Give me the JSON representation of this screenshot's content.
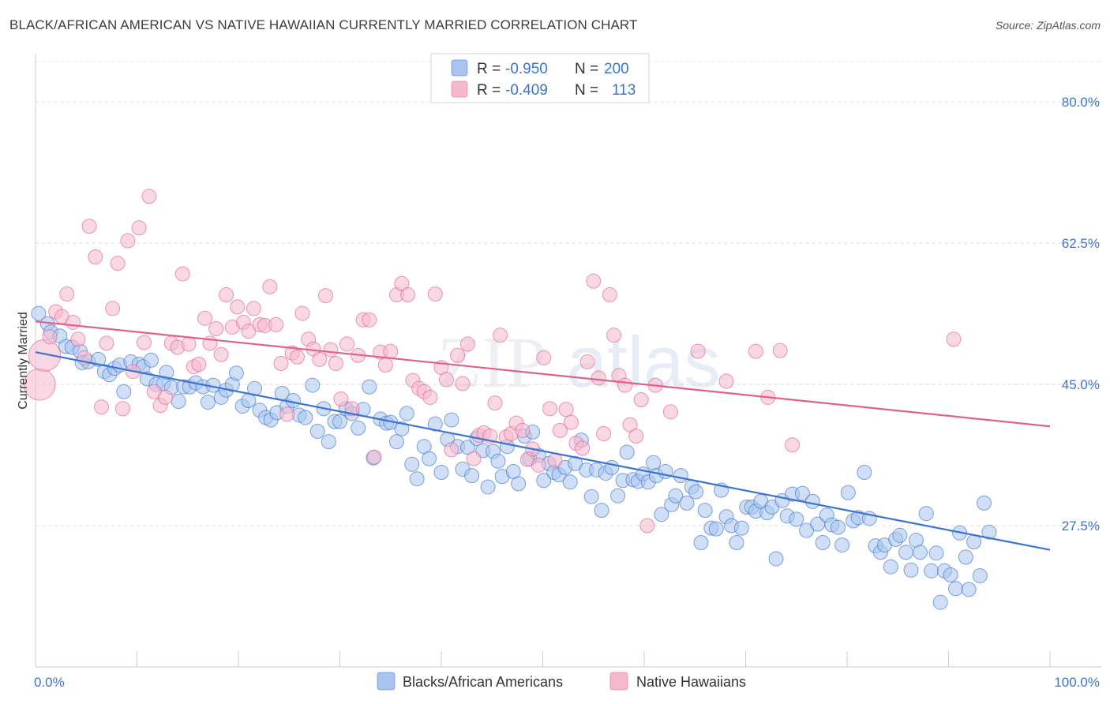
{
  "title": "BLACK/AFRICAN AMERICAN VS NATIVE HAWAIIAN CURRENTLY MARRIED CORRELATION CHART",
  "source": "Source: ZipAtlas.com",
  "watermark": {
    "zip": "ZIP",
    "atlas": "atlas"
  },
  "colors": {
    "blue": "#3b74d0",
    "blue_fill": "#a9c4ef",
    "pink": "#e0608e",
    "pink_fill": "#f6b8cc",
    "grid": "#d8d8d8"
  },
  "legend": {
    "r_label": "R =",
    "n_label": "N =",
    "rows": [
      {
        "r": "-0.950",
        "n": "200"
      },
      {
        "r": "-0.409",
        "n": "113"
      }
    ]
  },
  "chart_data": {
    "type": "scatter",
    "ylabel": "Currently Married",
    "xlim": [
      0,
      100
    ],
    "ylim": [
      10,
      85
    ],
    "x_tick_labels": [
      "0.0%",
      "100.0%"
    ],
    "y_ticks": [
      {
        "value": 80,
        "label": "80.0%"
      },
      {
        "value": 62.5,
        "label": "62.5%"
      },
      {
        "value": 45,
        "label": "45.0%"
      },
      {
        "value": 27.5,
        "label": "27.5%"
      }
    ],
    "grid": true,
    "legend_position": "top-center",
    "series": [
      {
        "name": "Blacks/African Americans",
        "color": "#3b74d0",
        "fill": "#a9c4ef",
        "trend": {
          "x": [
            0,
            100
          ],
          "y": [
            49.0,
            24.5
          ]
        },
        "points": [
          [
            0.3,
            53.8
          ],
          [
            1.2,
            52.5
          ],
          [
            1.5,
            51.5
          ],
          [
            2.4,
            51.0
          ],
          [
            3.0,
            49.7
          ],
          [
            3.6,
            49.6
          ],
          [
            4.4,
            49.1
          ],
          [
            4.6,
            47.7
          ],
          [
            5.2,
            47.8
          ],
          [
            6.2,
            48.1
          ],
          [
            6.8,
            46.6
          ],
          [
            7.3,
            46.2
          ],
          [
            7.8,
            47.0
          ],
          [
            8.3,
            47.4
          ],
          [
            8.7,
            44.1
          ],
          [
            9.4,
            47.8
          ],
          [
            10.2,
            47.5
          ],
          [
            10.6,
            47.2
          ],
          [
            11.0,
            45.7
          ],
          [
            11.4,
            48.0
          ],
          [
            11.9,
            45.0
          ],
          [
            12.6,
            45.1
          ],
          [
            12.9,
            46.5
          ],
          [
            13.4,
            44.6
          ],
          [
            14.1,
            42.9
          ],
          [
            14.6,
            44.7
          ],
          [
            15.2,
            44.7
          ],
          [
            15.8,
            45.2
          ],
          [
            16.5,
            44.7
          ],
          [
            17.0,
            42.8
          ],
          [
            17.5,
            44.9
          ],
          [
            18.3,
            43.4
          ],
          [
            18.8,
            44.3
          ],
          [
            19.4,
            45.0
          ],
          [
            19.8,
            46.4
          ],
          [
            20.4,
            42.3
          ],
          [
            21.0,
            43.0
          ],
          [
            21.6,
            44.5
          ],
          [
            22.1,
            41.8
          ],
          [
            22.7,
            40.9
          ],
          [
            23.2,
            40.6
          ],
          [
            23.8,
            41.5
          ],
          [
            24.3,
            43.9
          ],
          [
            24.8,
            42.3
          ],
          [
            25.4,
            43.0
          ],
          [
            26.0,
            41.2
          ],
          [
            26.6,
            40.9
          ],
          [
            27.3,
            44.9
          ],
          [
            27.8,
            39.2
          ],
          [
            28.4,
            42.0
          ],
          [
            28.9,
            37.9
          ],
          [
            29.5,
            40.4
          ],
          [
            30.0,
            40.4
          ],
          [
            30.6,
            42.0
          ],
          [
            31.2,
            41.4
          ],
          [
            31.8,
            39.6
          ],
          [
            32.3,
            41.9
          ],
          [
            32.9,
            44.7
          ],
          [
            33.3,
            35.9
          ],
          [
            34.0,
            40.7
          ],
          [
            34.6,
            40.2
          ],
          [
            35.0,
            40.3
          ],
          [
            35.6,
            37.9
          ],
          [
            36.1,
            39.5
          ],
          [
            36.6,
            41.4
          ],
          [
            37.1,
            35.1
          ],
          [
            37.6,
            33.3
          ],
          [
            38.3,
            37.3
          ],
          [
            38.8,
            35.8
          ],
          [
            39.4,
            40.1
          ],
          [
            40.0,
            34.1
          ],
          [
            40.6,
            38.2
          ],
          [
            41.0,
            40.6
          ],
          [
            41.6,
            37.3
          ],
          [
            42.1,
            34.5
          ],
          [
            42.6,
            37.2
          ],
          [
            43.0,
            33.7
          ],
          [
            43.5,
            38.3
          ],
          [
            44.1,
            36.8
          ],
          [
            44.6,
            32.3
          ],
          [
            45.1,
            36.7
          ],
          [
            45.6,
            35.5
          ],
          [
            46.0,
            33.6
          ],
          [
            46.5,
            37.3
          ],
          [
            47.1,
            34.2
          ],
          [
            47.6,
            32.7
          ],
          [
            48.2,
            38.6
          ],
          [
            48.7,
            35.8
          ],
          [
            49.0,
            39.1
          ],
          [
            49.6,
            36.2
          ],
          [
            50.1,
            33.1
          ],
          [
            50.6,
            35.2
          ],
          [
            51.1,
            34.1
          ],
          [
            51.6,
            33.8
          ],
          [
            52.2,
            34.7
          ],
          [
            52.7,
            32.9
          ],
          [
            53.2,
            35.2
          ],
          [
            53.8,
            38.1
          ],
          [
            54.3,
            34.4
          ],
          [
            54.8,
            31.1
          ],
          [
            55.3,
            34.4
          ],
          [
            55.8,
            29.4
          ],
          [
            56.2,
            34.0
          ],
          [
            56.8,
            34.7
          ],
          [
            57.4,
            31.2
          ],
          [
            57.9,
            33.1
          ],
          [
            58.3,
            36.6
          ],
          [
            58.9,
            33.2
          ],
          [
            59.4,
            33.0
          ],
          [
            59.9,
            33.9
          ],
          [
            60.4,
            32.9
          ],
          [
            60.9,
            35.3
          ],
          [
            61.2,
            33.7
          ],
          [
            61.7,
            28.9
          ],
          [
            62.1,
            34.2
          ],
          [
            62.7,
            30.1
          ],
          [
            63.1,
            31.2
          ],
          [
            63.6,
            33.7
          ],
          [
            64.2,
            30.3
          ],
          [
            64.7,
            32.3
          ],
          [
            65.1,
            31.7
          ],
          [
            65.6,
            25.4
          ],
          [
            66.0,
            29.4
          ],
          [
            66.6,
            27.2
          ],
          [
            67.1,
            27.1
          ],
          [
            67.6,
            31.9
          ],
          [
            68.1,
            28.6
          ],
          [
            68.6,
            27.5
          ],
          [
            69.1,
            25.4
          ],
          [
            69.6,
            27.2
          ],
          [
            70.1,
            29.8
          ],
          [
            70.6,
            29.8
          ],
          [
            71.0,
            29.3
          ],
          [
            71.5,
            30.5
          ],
          [
            72.1,
            29.1
          ],
          [
            72.6,
            29.8
          ],
          [
            73.0,
            23.4
          ],
          [
            73.6,
            30.6
          ],
          [
            74.1,
            28.7
          ],
          [
            74.6,
            31.4
          ],
          [
            75.0,
            28.3
          ],
          [
            75.6,
            31.5
          ],
          [
            76.0,
            26.9
          ],
          [
            76.6,
            30.5
          ],
          [
            77.1,
            27.7
          ],
          [
            77.6,
            25.4
          ],
          [
            78.0,
            28.8
          ],
          [
            78.5,
            27.6
          ],
          [
            79.1,
            27.3
          ],
          [
            79.5,
            25.1
          ],
          [
            80.1,
            31.6
          ],
          [
            80.6,
            28.1
          ],
          [
            81.1,
            28.5
          ],
          [
            81.7,
            34.1
          ],
          [
            82.2,
            28.4
          ],
          [
            82.8,
            25.0
          ],
          [
            83.3,
            24.2
          ],
          [
            83.7,
            25.1
          ],
          [
            84.3,
            22.4
          ],
          [
            84.8,
            25.8
          ],
          [
            85.2,
            26.3
          ],
          [
            85.8,
            24.2
          ],
          [
            86.3,
            22.0
          ],
          [
            86.8,
            25.7
          ],
          [
            87.2,
            24.2
          ],
          [
            87.8,
            29.0
          ],
          [
            88.3,
            21.9
          ],
          [
            88.8,
            24.1
          ],
          [
            89.2,
            18.0
          ],
          [
            89.6,
            21.9
          ],
          [
            90.2,
            21.4
          ],
          [
            90.7,
            19.7
          ],
          [
            91.1,
            26.6
          ],
          [
            91.7,
            23.6
          ],
          [
            92.0,
            19.6
          ],
          [
            92.5,
            25.5
          ],
          [
            93.1,
            21.3
          ],
          [
            93.5,
            30.3
          ],
          [
            94.0,
            26.7
          ]
        ]
      },
      {
        "name": "Native Hawaiians",
        "color": "#e0608e",
        "fill": "#f6b8cc",
        "trend": {
          "x": [
            0,
            100
          ],
          "y": [
            52.8,
            39.8
          ]
        },
        "points": [
          [
            0.4,
            45.0
          ],
          [
            0.9,
            48.6
          ],
          [
            1.4,
            50.9
          ],
          [
            2.0,
            54.0
          ],
          [
            2.6,
            53.4
          ],
          [
            3.1,
            56.2
          ],
          [
            3.7,
            52.7
          ],
          [
            4.2,
            50.6
          ],
          [
            4.8,
            48.3
          ],
          [
            5.3,
            64.6
          ],
          [
            5.9,
            60.8
          ],
          [
            6.5,
            42.2
          ],
          [
            7.0,
            50.1
          ],
          [
            7.6,
            54.4
          ],
          [
            8.1,
            60.0
          ],
          [
            8.6,
            42.0
          ],
          [
            9.1,
            62.8
          ],
          [
            9.6,
            46.6
          ],
          [
            10.2,
            64.4
          ],
          [
            10.7,
            50.2
          ],
          [
            11.2,
            68.3
          ],
          [
            11.7,
            44.1
          ],
          [
            12.3,
            42.4
          ],
          [
            12.8,
            43.4
          ],
          [
            13.4,
            50.1
          ],
          [
            14.0,
            49.6
          ],
          [
            14.5,
            58.7
          ],
          [
            15.1,
            50.0
          ],
          [
            15.6,
            47.2
          ],
          [
            16.1,
            47.5
          ],
          [
            16.7,
            53.2
          ],
          [
            17.2,
            50.1
          ],
          [
            17.8,
            51.9
          ],
          [
            18.3,
            48.7
          ],
          [
            18.8,
            56.1
          ],
          [
            19.4,
            52.1
          ],
          [
            19.9,
            54.6
          ],
          [
            20.5,
            52.7
          ],
          [
            21.0,
            51.6
          ],
          [
            21.5,
            54.4
          ],
          [
            22.1,
            52.4
          ],
          [
            22.6,
            52.3
          ],
          [
            23.1,
            57.1
          ],
          [
            23.7,
            52.4
          ],
          [
            24.2,
            47.6
          ],
          [
            24.8,
            41.3
          ],
          [
            25.3,
            48.9
          ],
          [
            25.8,
            48.4
          ],
          [
            26.3,
            53.8
          ],
          [
            26.9,
            50.6
          ],
          [
            27.4,
            49.4
          ],
          [
            28.0,
            48.1
          ],
          [
            28.6,
            56.0
          ],
          [
            29.1,
            49.3
          ],
          [
            29.6,
            47.6
          ],
          [
            30.1,
            43.2
          ],
          [
            30.7,
            50.0
          ],
          [
            31.2,
            42.0
          ],
          [
            31.8,
            48.6
          ],
          [
            32.3,
            53.0
          ],
          [
            32.9,
            53.0
          ],
          [
            33.4,
            36.0
          ],
          [
            34.0,
            49.0
          ],
          [
            34.5,
            47.4
          ],
          [
            35.0,
            49.1
          ],
          [
            35.6,
            56.1
          ],
          [
            36.1,
            57.5
          ],
          [
            36.7,
            56.1
          ],
          [
            37.2,
            45.5
          ],
          [
            37.8,
            44.5
          ],
          [
            38.3,
            44.1
          ],
          [
            38.9,
            43.4
          ],
          [
            39.4,
            56.2
          ],
          [
            40.0,
            47.1
          ],
          [
            40.5,
            45.6
          ],
          [
            41.0,
            36.9
          ],
          [
            41.6,
            48.6
          ],
          [
            42.1,
            45.1
          ],
          [
            42.6,
            50.0
          ],
          [
            43.2,
            35.8
          ],
          [
            43.7,
            38.7
          ],
          [
            44.2,
            39.0
          ],
          [
            44.8,
            38.6
          ],
          [
            45.3,
            42.7
          ],
          [
            45.8,
            51.1
          ],
          [
            46.4,
            38.5
          ],
          [
            46.9,
            38.9
          ],
          [
            47.4,
            40.2
          ],
          [
            48.0,
            39.3
          ],
          [
            48.5,
            35.7
          ],
          [
            49.0,
            37.0
          ],
          [
            49.6,
            35.0
          ],
          [
            50.1,
            48.3
          ],
          [
            50.7,
            42.0
          ],
          [
            51.2,
            35.6
          ],
          [
            51.7,
            39.3
          ],
          [
            52.3,
            41.9
          ],
          [
            52.8,
            40.3
          ],
          [
            53.3,
            37.7
          ],
          [
            53.9,
            37.1
          ],
          [
            54.4,
            47.8
          ],
          [
            55.0,
            57.8
          ],
          [
            55.5,
            45.8
          ],
          [
            56.0,
            38.9
          ],
          [
            56.6,
            56.1
          ],
          [
            57.0,
            51.1
          ],
          [
            57.5,
            46.1
          ],
          [
            58.1,
            44.9
          ],
          [
            58.6,
            40.0
          ],
          [
            59.2,
            38.6
          ],
          [
            59.7,
            43.1
          ],
          [
            60.3,
            27.5
          ],
          [
            61.1,
            44.9
          ],
          [
            62.6,
            41.6
          ],
          [
            65.3,
            49.1
          ],
          [
            68.1,
            45.4
          ],
          [
            71.0,
            49.1
          ],
          [
            72.2,
            43.4
          ],
          [
            73.4,
            49.2
          ],
          [
            74.6,
            37.5
          ],
          [
            90.5,
            50.6
          ]
        ]
      }
    ]
  },
  "bottom_legend": [
    "Blacks/African Americans",
    "Native Hawaiians"
  ]
}
